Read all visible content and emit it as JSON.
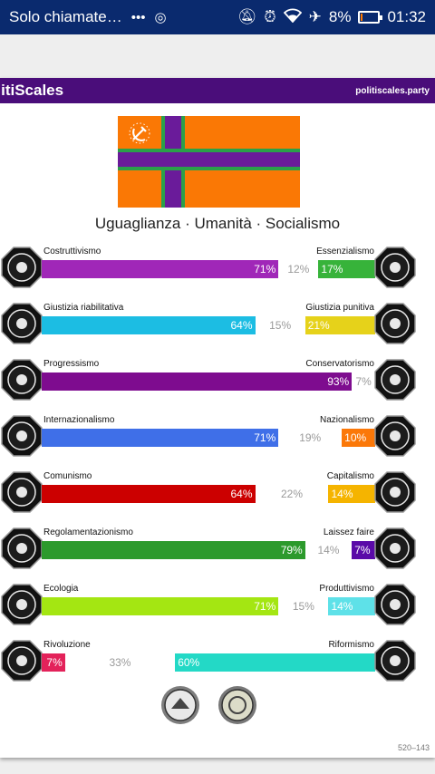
{
  "status_bar": {
    "carrier": "Solo chiamate…",
    "battery": "8%",
    "time": "01:32",
    "battery_level": 0.08
  },
  "header": {
    "logo": "olitiScales",
    "site": "politiscales.party"
  },
  "ideology": "Uguaglianza · Umanità · Socialismo",
  "colors": {
    "titlebar": "#4a0d7a",
    "flag_orange": "#fa7805",
    "flag_cross": "#6a1b9a",
    "flag_border": "#2aa04a"
  },
  "axes": [
    {
      "left_label": "Costruttivismo",
      "right_label": "Essenzialismo",
      "left": "71%",
      "mid": "12%",
      "right": "17%",
      "left_pct": 71,
      "mid_pct": 12,
      "right_pct": 17,
      "left_color": "#a027b8",
      "right_color": "#37b33a",
      "left_icon": "constructivism-icon",
      "right_icon": "essentialism-icon"
    },
    {
      "left_label": "Giustizia riabilitativa",
      "right_label": "Giustizia punitiva",
      "left": "64%",
      "mid": "15%",
      "right": "21%",
      "left_pct": 64,
      "mid_pct": 15,
      "right_pct": 21,
      "left_color": "#1cbde3",
      "right_color": "#e6d21a",
      "left_icon": "handshake-icon",
      "right_icon": "prison-bars-icon"
    },
    {
      "left_label": "Progressismo",
      "right_label": "Conservatorismo",
      "left": "93%",
      "mid": "7%",
      "right": "",
      "left_pct": 93,
      "mid_pct": 7,
      "right_pct": 0,
      "left_color": "#7e0c8f",
      "right_color": "#2b5ea8",
      "left_icon": "progressive-icon",
      "right_icon": "conservative-icon"
    },
    {
      "left_label": "Internazionalismo",
      "right_label": "Nazionalismo",
      "left": "71%",
      "mid": "19%",
      "right": "10%",
      "left_pct": 71,
      "mid_pct": 19,
      "right_pct": 10,
      "left_color": "#3f6fe8",
      "right_color": "#fb7808",
      "left_icon": "globe-icon",
      "right_icon": "flag-icon"
    },
    {
      "left_label": "Comunismo",
      "right_label": "Capitalismo",
      "left": "64%",
      "mid": "22%",
      "right": "14%",
      "left_pct": 64,
      "mid_pct": 22,
      "right_pct": 14,
      "left_color": "#cc0000",
      "right_color": "#f5b400",
      "left_icon": "hammer-sickle-icon",
      "right_icon": "money-bag-icon"
    },
    {
      "left_label": "Regolamentazionismo",
      "right_label": "Laissez faire",
      "left": "79%",
      "mid": "14%",
      "right": "7%",
      "left_pct": 79,
      "mid_pct": 14,
      "right_pct": 7,
      "left_color": "#2c9a2c",
      "right_color": "#5a0aa8",
      "left_icon": "regulation-icon",
      "right_icon": "laissez-faire-icon"
    },
    {
      "left_label": "Ecologia",
      "right_label": "Produttivismo",
      "left": "71%",
      "mid": "15%",
      "right": "14%",
      "left_pct": 71,
      "mid_pct": 15,
      "right_pct": 14,
      "left_color": "#a4e612",
      "right_color": "#5ee1e8",
      "left_icon": "ecology-icon",
      "right_icon": "factory-icon"
    },
    {
      "left_label": "Rivoluzione",
      "right_label": "Riformismo",
      "left": "7%",
      "mid": "33%",
      "right": "60%",
      "left_pct": 7,
      "mid_pct": 33,
      "right_pct": 60,
      "left_color": "#e3225a",
      "right_color": "#23d9c6",
      "left_icon": "revolution-icon",
      "right_icon": "reform-icon"
    }
  ],
  "footer_code": "520–143"
}
